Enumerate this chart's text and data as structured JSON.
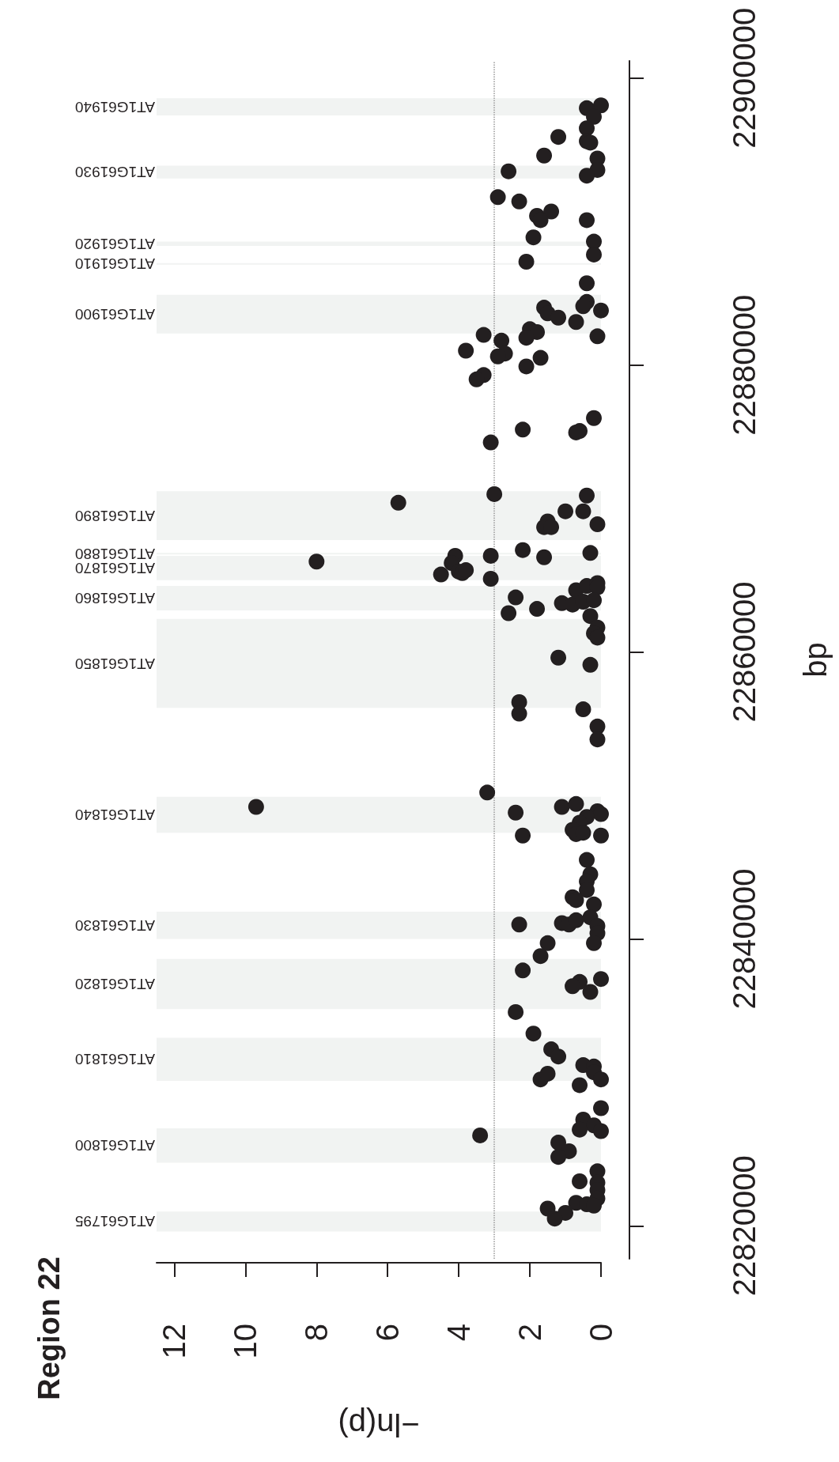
{
  "chart_data": {
    "type": "scatter",
    "title": "Region 22",
    "xlabel": "−ln(p)",
    "ylabel": "bp",
    "xlim": [
      12.5,
      0
    ],
    "ylim": [
      22817700,
      22901200
    ],
    "xticks": [
      0,
      2,
      4,
      6,
      8,
      10,
      12
    ],
    "yticks": [
      22820000,
      22840000,
      22860000,
      22880000,
      22900000
    ],
    "grid": false,
    "marker": "circle",
    "ref_lines": [
      {
        "axis": "x",
        "value": 3,
        "color": "#999999",
        "line_style": "dotted"
      }
    ],
    "bands": [
      {
        "axis": "y",
        "from": 22819600,
        "to": 22821000,
        "label": "AT1G61795",
        "color": "#f1f3f2"
      },
      {
        "axis": "y",
        "from": 22824400,
        "to": 22826800,
        "label": "AT1G61800",
        "color": "#f1f3f2"
      },
      {
        "axis": "y",
        "from": 22830100,
        "to": 22833100,
        "label": "AT1G61810",
        "color": "#f1f3f2"
      },
      {
        "axis": "y",
        "from": 22835100,
        "to": 22838600,
        "label": "AT1G61820",
        "color": "#f1f3f2"
      },
      {
        "axis": "y",
        "from": 22840000,
        "to": 22841900,
        "label": "AT1G61830",
        "color": "#f1f3f2"
      },
      {
        "axis": "y",
        "from": 22847400,
        "to": 22849900,
        "label": "AT1G61840",
        "color": "#f1f3f2"
      },
      {
        "axis": "y",
        "from": 22856100,
        "to": 22862300,
        "label": "AT1G61850",
        "color": "#f1f3f2"
      },
      {
        "axis": "y",
        "from": 22862900,
        "to": 22864600,
        "label": "AT1G61860",
        "color": "#f1f3f2"
      },
      {
        "axis": "y",
        "from": 22865000,
        "to": 22866700,
        "label": "AT1G61870",
        "color": "#f1f3f2"
      },
      {
        "axis": "y",
        "from": 22866800,
        "to": 22866900,
        "label": "AT1G61880",
        "color": "#f1f3f2"
      },
      {
        "axis": "y",
        "from": 22867800,
        "to": 22871200,
        "label": "AT1G61890",
        "color": "#f1f3f2"
      },
      {
        "axis": "y",
        "from": 22882200,
        "to": 22884900,
        "label": "AT1G61900",
        "color": "#f1f3f2"
      },
      {
        "axis": "y",
        "from": 22887000,
        "to": 22887100,
        "label": "AT1G61910",
        "color": "#f1f3f2"
      },
      {
        "axis": "y",
        "from": 22888300,
        "to": 22888600,
        "label": "AT1G61920",
        "color": "#f1f3f2"
      },
      {
        "axis": "y",
        "from": 22893000,
        "to": 22893900,
        "label": "AT1G61930",
        "color": "#f1f3f2"
      },
      {
        "axis": "y",
        "from": 22897400,
        "to": 22898600,
        "label": "AT1G61940",
        "color": "#f1f3f2"
      }
    ],
    "x": [
      0.0,
      0.4,
      0.2,
      0.4,
      1.2,
      0.4,
      0.3,
      1.6,
      0.1,
      0.1,
      0.4,
      2.6,
      2.9,
      2.3,
      1.4,
      1.8,
      1.7,
      0.4,
      1.9,
      0.2,
      0.2,
      2.1,
      0.4,
      0.4,
      0.5,
      0.0,
      1.6,
      1.5,
      1.2,
      0.7,
      0.1,
      3.3,
      2.8,
      2.0,
      1.8,
      2.1,
      3.8,
      2.7,
      2.9,
      1.7,
      2.1,
      3.3,
      3.5,
      0.2,
      2.2,
      0.6,
      0.7,
      3.1,
      5.7,
      3.0,
      0.4,
      1.0,
      0.5,
      0.1,
      1.5,
      1.6,
      1.4,
      2.2,
      0.3,
      1.6,
      3.1,
      4.1,
      8.0,
      4.2,
      4.0,
      3.9,
      3.8,
      4.5,
      3.1,
      2.4,
      2.6,
      1.8,
      1.1,
      0.8,
      0.7,
      0.4,
      0.1,
      0.1,
      0.5,
      0.2,
      0.3,
      0.1,
      0.2,
      0.1,
      1.2,
      0.3,
      2.3,
      2.3,
      0.5,
      0.1,
      0.1,
      3.2,
      9.7,
      2.4,
      1.1,
      0.7,
      2.2,
      0.1,
      0.0,
      0.4,
      0.6,
      0.8,
      0.7,
      0.5,
      0.0,
      0.4,
      0.3,
      0.4,
      0.4,
      0.8,
      0.7,
      0.2,
      0.3,
      1.1,
      0.9,
      0.7,
      0.1,
      0.1,
      2.3,
      0.2,
      1.5,
      1.7,
      2.2,
      0.0,
      0.6,
      0.8,
      0.3,
      2.4,
      1.9,
      1.4,
      1.2,
      1.7,
      1.5,
      0.5,
      0.2,
      0.2,
      0.0,
      0.6,
      0.0,
      0.5,
      0.2,
      0.6,
      0.0,
      3.4,
      1.2,
      0.9,
      1.2,
      0.1,
      0.6,
      0.1,
      0.1,
      0.1,
      0.7,
      0.4,
      0.2,
      1.5,
      1.0,
      1.3
    ],
    "series": [
      {
        "color": "#231f20",
        "values": [
          22898100,
          22897900,
          22897300,
          22896500,
          22895900,
          22895600,
          22895500,
          22894600,
          22894400,
          22893600,
          22893200,
          22893500,
          22891700,
          22891400,
          22890700,
          22890400,
          22890100,
          22890100,
          22888900,
          22888600,
          22887700,
          22887200,
          22885700,
          22884400,
          22884100,
          22883800,
          22884000,
          22883600,
          22883300,
          22883000,
          22882000,
          22882100,
          22881700,
          22882500,
          22882300,
          22881900,
          22881000,
          22880800,
          22880600,
          22880500,
          22879900,
          22879300,
          22879000,
          22876300,
          22875500,
          22875400,
          22875300,
          22874600,
          22870400,
          22871000,
          22870900,
          22869800,
          22869800,
          22868900,
          22869100,
          22868700,
          22868700,
          22867100,
          22866900,
          22866600,
          22866700,
          22866700,
          22866300,
          22866200,
          22865600,
          22865500,
          22865700,
          22865400,
          22865100,
          22863800,
          22862700,
          22863000,
          22863400,
          22863300,
          22864300,
          22864600,
          22864800,
          22864500,
          22863500,
          22863600,
          22862500,
          22861700,
          22861300,
          22861000,
          22859600,
          22859100,
          22856500,
          22855700,
          22856000,
          22854800,
          22853900,
          22850200,
          22849200,
          22848800,
          22849200,
          22849400,
          22847200,
          22848900,
          22848700,
          22848500,
          22848100,
          22847600,
          22847300,
          22847400,
          22847200,
          22845500,
          22844500,
          22844000,
          22843400,
          22842900,
          22842700,
          22842400,
          22841500,
          22841100,
          22841000,
          22841300,
          22840900,
          22840400,
          22841000,
          22839700,
          22839700,
          22838800,
          22837800,
          22837200,
          22837000,
          22836700,
          22836300,
          22834900,
          22833400,
          22832300,
          22831800,
          22830200,
          22830600,
          22831200,
          22831100,
          22830700,
          22830200,
          22829800,
          22828200,
          22827400,
          22827000,
          22826700,
          22826600,
          22826300,
          22825800,
          22825200,
          22824800,
          22823800,
          22823100,
          22823000,
          22822500,
          22821900,
          22821600,
          22821500,
          22821400,
          22821200,
          22820900,
          22820500
        ]
      }
    ]
  }
}
